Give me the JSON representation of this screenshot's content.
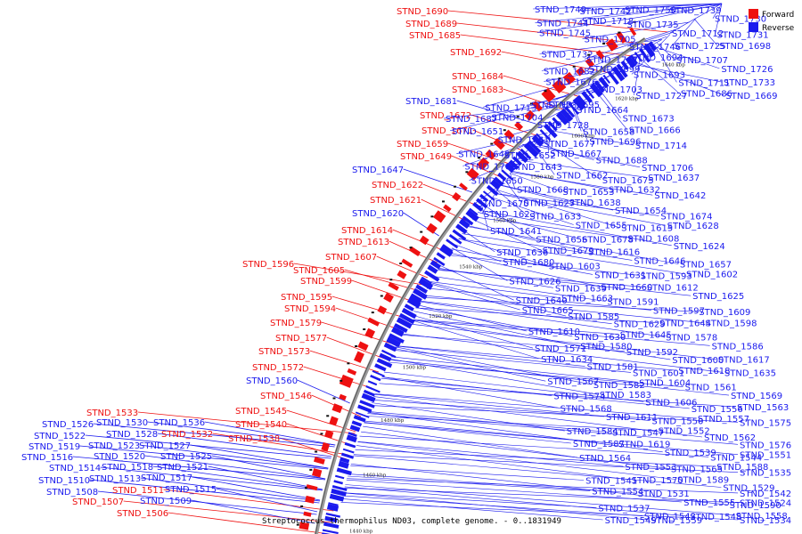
{
  "caption": "Streptococcus thermophilus ND03, complete genome. - 0..1831949",
  "legend": {
    "forward": {
      "label": "Forward",
      "color": "#ee1111"
    },
    "reverse": {
      "label": "Reverse",
      "color": "#1a1aee"
    }
  },
  "scale_labels": [
    "1440 kbp",
    "1460 kbp",
    "1480 kbp",
    "1500 kbp",
    "1520 kbp",
    "1540 kbp",
    "1560 kbp",
    "1580 kbp",
    "1600 kbp",
    "1620 kbp",
    "1640 kbp"
  ],
  "forward_genes": [
    "STND_1690",
    "STND_1689",
    "STND_1685",
    "STND_1692",
    "STND_1684",
    "STND_1683",
    "STND_1672",
    "STND_1671",
    "STND_1659",
    "STND_1649",
    "STND_1622",
    "STND_1621",
    "STND_1614",
    "STND_1613",
    "STND_1607",
    "STND_1596",
    "STND_1605",
    "STND_1599",
    "STND_1595",
    "STND_1594",
    "STND_1579",
    "STND_1577",
    "STND_1573",
    "STND_1572",
    "STND_1546",
    "STND_1545",
    "STND_1540",
    "STND_1533",
    "STND_1532",
    "STND_1538",
    "STND_1511",
    "STND_1507",
    "STND_1506"
  ],
  "reverse_left_genes": [
    "STND_1681",
    "STND_1647",
    "STND_1620",
    "STND_1560",
    "STND_1526",
    "STND_1530",
    "STND_1536",
    "STND_1522",
    "STND_1528",
    "STND_1519",
    "STND_1523",
    "STND_1527",
    "STND_1516",
    "STND_1520",
    "STND_1525",
    "STND_1514",
    "STND_1518",
    "STND_1521",
    "STND_1510",
    "STND_1513",
    "STND_1517",
    "STND_1508",
    "STND_1515",
    "STND_1509"
  ],
  "reverse_right_genes": [
    "STND_1749",
    "STND_1742",
    "STND_1750",
    "STND_1739",
    "STND_1730",
    "STND_1744",
    "STND_1718",
    "STND_1735",
    "STND_1712",
    "STND_1731",
    "STND_1745",
    "STND_1705",
    "STND_1746",
    "STND_1725",
    "STND_1698",
    "STND_1732",
    "STND_1747",
    "STND_1694",
    "STND_1707",
    "STND_1726",
    "STND_1682",
    "STND_1699",
    "STND_1693",
    "STND_1711",
    "STND_1733",
    "STND_1676",
    "STND_1703",
    "STND_1727",
    "STND_1686",
    "STND_1669",
    "STND_1695",
    "STND_1713",
    "STND_1736",
    "STND_1664",
    "STND_1673",
    "STND_1687",
    "STND_1704",
    "STND_1728",
    "STND_1658",
    "STND_1666",
    "STND_1651",
    "STND_1661",
    "STND_1677",
    "STND_1696",
    "STND_1714",
    "STND_1648",
    "STND_1652",
    "STND_1667",
    "STND_1688",
    "STND_1706",
    "STND_1708",
    "STND_1643",
    "STND_1662",
    "STND_1675",
    "STND_1637",
    "STND_1650",
    "STND_1668",
    "STND_1653",
    "STND_1632",
    "STND_1642",
    "STND_1670",
    "STND_1627",
    "STND_1638",
    "STND_1654",
    "STND_1674",
    "STND_1623",
    "STND_1633",
    "STND_1655",
    "STND_1615",
    "STND_1628",
    "STND_1641",
    "STND_1656",
    "STND_1678",
    "STND_1608",
    "STND_1624",
    "STND_1636",
    "STND_1679",
    "STND_1616",
    "STND_1646",
    "STND_1657",
    "STND_1680",
    "STND_1603",
    "STND_1631",
    "STND_1593",
    "STND_1602",
    "STND_1626",
    "STND_1639",
    "STND_1660",
    "STND_1612",
    "STND_1625",
    "STND_1640",
    "STND_1663",
    "STND_1591",
    "STND_1597",
    "STND_1609",
    "STND_1665",
    "STND_1585",
    "STND_1629",
    "STND_1644",
    "STND_1598",
    "STND_1610",
    "STND_1630",
    "STND_1645",
    "STND_1578",
    "STND_1586",
    "STND_1571",
    "STND_1580",
    "STND_1592",
    "STND_1600",
    "STND_1617",
    "STND_1634",
    "STND_1581",
    "STND_1601",
    "STND_1618",
    "STND_1635",
    "STND_1567",
    "STND_1582",
    "STND_1604",
    "STND_1561",
    "STND_1569",
    "STND_1574",
    "STND_1583",
    "STND_1606",
    "STND_1556",
    "STND_1563",
    "STND_1568",
    "STND_1611",
    "STND_1550",
    "STND_1557",
    "STND_1575",
    "STND_1584",
    "STND_1547",
    "STND_1552",
    "STND_1562",
    "STND_1576",
    "STND_1587",
    "STND_1619",
    "STND_1539",
    "STND_1544",
    "STND_1551",
    "STND_1564",
    "STND_1553",
    "STND_1565",
    "STND_1588",
    "STND_1535",
    "STND_1541",
    "STND_1570",
    "STND_1589",
    "STND_1529",
    "STND_1542",
    "STND_1554",
    "STND_1531",
    "STND_1555",
    "STND_1590",
    "STND_1524",
    "STND_1537",
    "STND_1543",
    "STND_1548",
    "STND_1558",
    "STND_1534",
    "STND_1549",
    "STND_1559"
  ]
}
